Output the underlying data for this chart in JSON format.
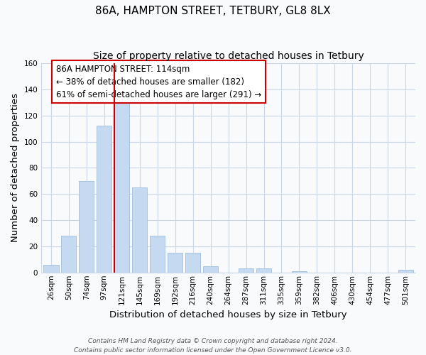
{
  "title": "86A, HAMPTON STREET, TETBURY, GL8 8LX",
  "subtitle": "Size of property relative to detached houses in Tetbury",
  "xlabel": "Distribution of detached houses by size in Tetbury",
  "ylabel": "Number of detached properties",
  "bar_labels": [
    "26sqm",
    "50sqm",
    "74sqm",
    "97sqm",
    "121sqm",
    "145sqm",
    "169sqm",
    "192sqm",
    "216sqm",
    "240sqm",
    "264sqm",
    "287sqm",
    "311sqm",
    "335sqm",
    "359sqm",
    "382sqm",
    "406sqm",
    "430sqm",
    "454sqm",
    "477sqm",
    "501sqm"
  ],
  "bar_values": [
    6,
    28,
    70,
    112,
    131,
    65,
    28,
    15,
    15,
    5,
    0,
    3,
    3,
    0,
    1,
    0,
    0,
    0,
    0,
    0,
    2
  ],
  "bar_color": "#c5d9f0",
  "bar_edge_color": "#a8c4e0",
  "reference_line_color": "#cc0000",
  "annotation_text": "86A HAMPTON STREET: 114sqm\n← 38% of detached houses are smaller (182)\n61% of semi-detached houses are larger (291) →",
  "annotation_box_facecolor": "#ffffff",
  "annotation_box_edgecolor": "#cc0000",
  "ylim": [
    0,
    160
  ],
  "yticks": [
    0,
    20,
    40,
    60,
    80,
    100,
    120,
    140,
    160
  ],
  "footer_line1": "Contains HM Land Registry data © Crown copyright and database right 2024.",
  "footer_line2": "Contains public sector information licensed under the Open Government Licence v3.0.",
  "background_color": "#f8fafc",
  "grid_color": "#ccd8e8",
  "title_fontsize": 11,
  "subtitle_fontsize": 10,
  "axis_label_fontsize": 9.5,
  "tick_fontsize": 7.5,
  "annotation_fontsize": 8.5,
  "footer_fontsize": 6.5
}
